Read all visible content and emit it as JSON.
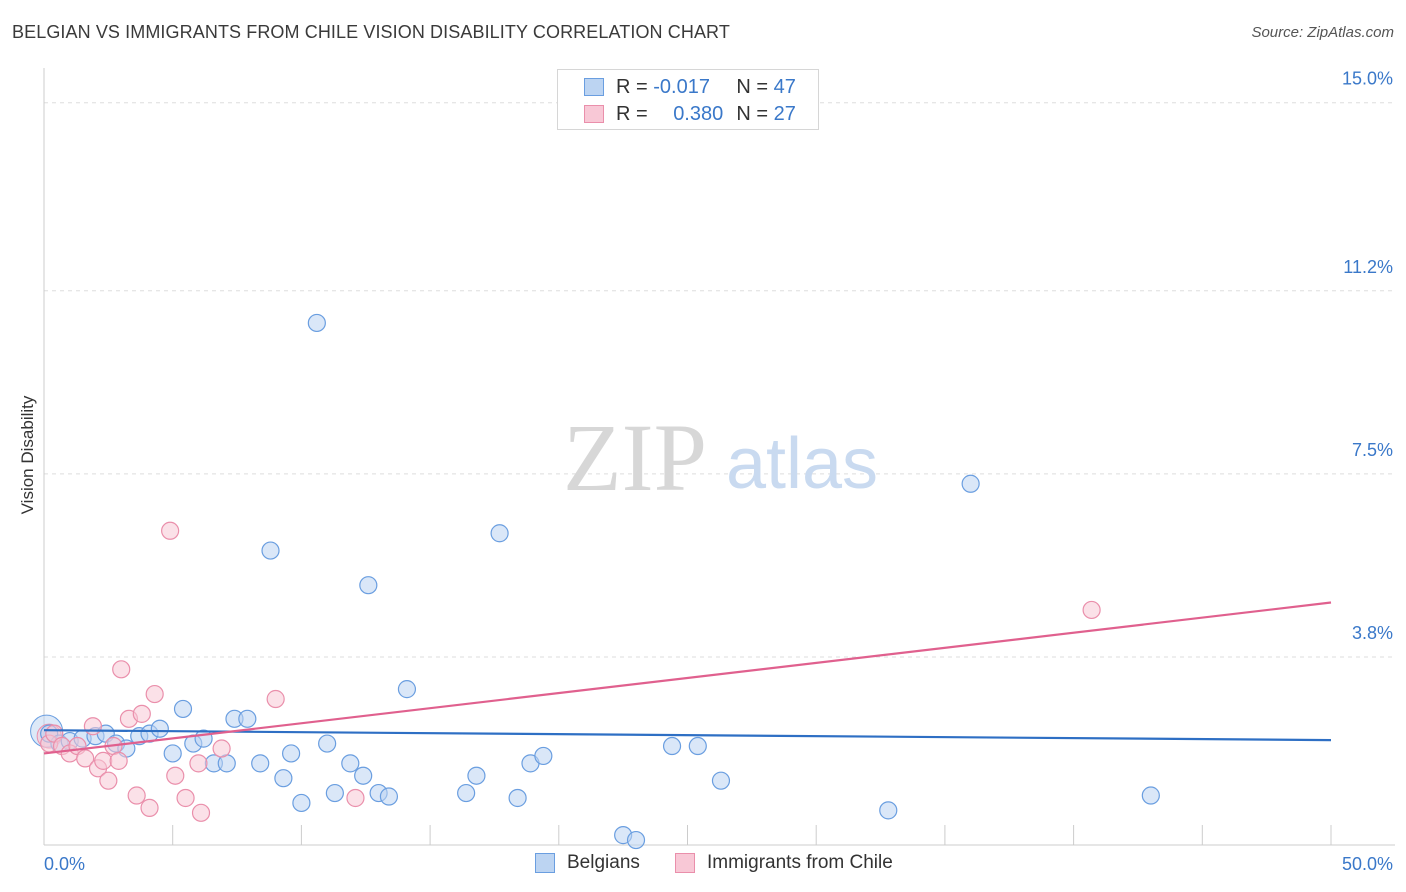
{
  "header": {
    "title": "BELGIAN VS IMMIGRANTS FROM CHILE VISION DISABILITY CORRELATION CHART",
    "source": "Source: ZipAtlas.com"
  },
  "watermark": {
    "zip": "ZIP",
    "atlas": "atlas"
  },
  "legend": {
    "r_label": "R =",
    "n_label": "N =",
    "rows": [
      {
        "r": "-0.017",
        "n": "47"
      },
      {
        "r": "0.380",
        "n": "27"
      }
    ]
  },
  "colors": {
    "belgians_fill": "#bcd4f2",
    "belgians_stroke": "#6a9ee0",
    "belgians_line": "#2e6fc4",
    "chile_fill": "#f8c8d6",
    "chile_stroke": "#ea8fab",
    "chile_line": "#e0608e",
    "tick_label": "#3a78c9",
    "grid": "#dddddd"
  },
  "chart_data": {
    "type": "scatter",
    "title": "BELGIAN VS IMMIGRANTS FROM CHILE VISION DISABILITY CORRELATION CHART",
    "xlabel": "",
    "ylabel": "Vision Disability",
    "xlim": [
      0,
      50
    ],
    "ylim": [
      0,
      15.5
    ],
    "x_tick_labels": [
      "0.0%",
      "50.0%"
    ],
    "y_ticks": [
      3.8,
      7.5,
      11.2,
      15.0
    ],
    "y_tick_labels": [
      "3.8%",
      "7.5%",
      "11.2%",
      "15.0%"
    ],
    "grid": true,
    "series": [
      {
        "name": "Belgians",
        "r": -0.017,
        "n": 47,
        "trend": {
          "x": [
            0,
            50
          ],
          "y": [
            2.32,
            2.12
          ]
        },
        "points": [
          [
            0.2,
            2.25
          ],
          [
            0.6,
            2.05
          ],
          [
            1.0,
            2.1
          ],
          [
            1.5,
            2.15
          ],
          [
            2.0,
            2.2
          ],
          [
            2.4,
            2.25
          ],
          [
            2.8,
            2.05
          ],
          [
            3.2,
            1.95
          ],
          [
            3.7,
            2.2
          ],
          [
            4.1,
            2.25
          ],
          [
            4.5,
            2.35
          ],
          [
            5.0,
            1.85
          ],
          [
            5.4,
            2.75
          ],
          [
            5.8,
            2.05
          ],
          [
            6.2,
            2.15
          ],
          [
            6.6,
            1.65
          ],
          [
            7.1,
            1.65
          ],
          [
            7.4,
            2.55
          ],
          [
            7.9,
            2.55
          ],
          [
            8.4,
            1.65
          ],
          [
            8.8,
            5.95
          ],
          [
            9.3,
            1.35
          ],
          [
            9.6,
            1.85
          ],
          [
            10.0,
            0.85
          ],
          [
            10.6,
            10.55
          ],
          [
            11.0,
            2.05
          ],
          [
            11.3,
            1.05
          ],
          [
            11.9,
            1.65
          ],
          [
            12.4,
            1.4
          ],
          [
            12.6,
            5.25
          ],
          [
            13.0,
            1.05
          ],
          [
            13.4,
            0.98
          ],
          [
            14.1,
            3.15
          ],
          [
            16.4,
            1.05
          ],
          [
            16.8,
            1.4
          ],
          [
            17.7,
            6.3
          ],
          [
            18.4,
            0.95
          ],
          [
            18.9,
            1.65
          ],
          [
            19.4,
            1.8
          ],
          [
            22.5,
            0.2
          ],
          [
            23.0,
            0.1
          ],
          [
            24.4,
            2.0
          ],
          [
            25.4,
            2.0
          ],
          [
            26.3,
            1.3
          ],
          [
            32.8,
            0.7
          ],
          [
            36.0,
            7.3
          ],
          [
            43.0,
            1.0
          ]
        ]
      },
      {
        "name": "Immigrants from Chile",
        "r": 0.38,
        "n": 27,
        "trend": {
          "x": [
            0,
            50
          ],
          "y": [
            1.85,
            4.9
          ]
        },
        "points": [
          [
            0.2,
            2.05
          ],
          [
            0.4,
            2.25
          ],
          [
            0.7,
            2.0
          ],
          [
            1.0,
            1.85
          ],
          [
            1.3,
            2.0
          ],
          [
            1.6,
            1.75
          ],
          [
            1.9,
            2.4
          ],
          [
            2.1,
            1.55
          ],
          [
            2.3,
            1.7
          ],
          [
            2.5,
            1.3
          ],
          [
            2.7,
            2.0
          ],
          [
            2.9,
            1.7
          ],
          [
            3.0,
            3.55
          ],
          [
            3.3,
            2.55
          ],
          [
            3.6,
            1.0
          ],
          [
            3.8,
            2.65
          ],
          [
            4.1,
            0.75
          ],
          [
            4.3,
            3.05
          ],
          [
            4.9,
            6.35
          ],
          [
            5.1,
            1.4
          ],
          [
            5.5,
            0.95
          ],
          [
            6.0,
            1.65
          ],
          [
            6.1,
            0.65
          ],
          [
            6.9,
            1.95
          ],
          [
            9.0,
            2.95
          ],
          [
            12.1,
            0.95
          ],
          [
            40.7,
            4.75
          ]
        ]
      }
    ]
  }
}
